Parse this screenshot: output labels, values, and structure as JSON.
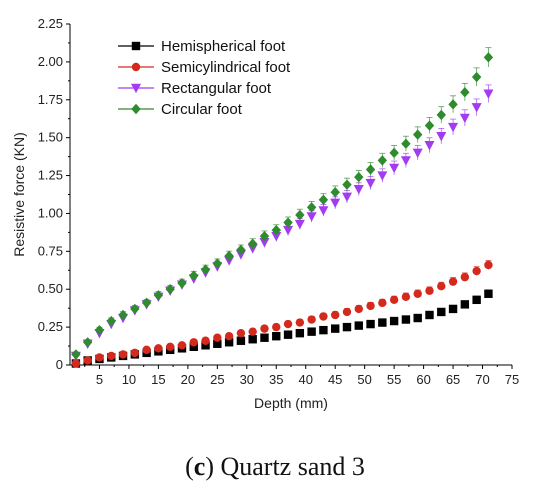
{
  "chart_data": {
    "type": "scatter",
    "xlabel": "Depth (mm)",
    "ylabel": "Resistive force (KN)",
    "xlim": [
      0,
      75
    ],
    "ylim": [
      0,
      2.25
    ],
    "xticks": [
      5,
      10,
      15,
      20,
      25,
      30,
      35,
      40,
      45,
      50,
      55,
      60,
      65,
      70,
      75
    ],
    "yticks": [
      0,
      0.25,
      0.5,
      0.75,
      1.0,
      1.25,
      1.5,
      1.75,
      2.0,
      2.25
    ],
    "ytick_labels": [
      "0",
      "0.25",
      "0.50",
      "0.75",
      "1.00",
      "1.25",
      "1.50",
      "1.75",
      "2.00",
      "2.25"
    ],
    "x0_label": "0",
    "grid": false,
    "legend_position": "top-left",
    "x": [
      1,
      3,
      5,
      7,
      9,
      11,
      13,
      15,
      17,
      19,
      21,
      23,
      25,
      27,
      29,
      31,
      33,
      35,
      37,
      39,
      41,
      43,
      45,
      47,
      49,
      51,
      53,
      55,
      57,
      59,
      61,
      63,
      65,
      67,
      69,
      71
    ],
    "series": [
      {
        "name": "Hemispherical foot",
        "marker": "square",
        "color": "#000000",
        "values": [
          0.01,
          0.03,
          0.04,
          0.05,
          0.06,
          0.07,
          0.08,
          0.09,
          0.1,
          0.11,
          0.12,
          0.13,
          0.14,
          0.15,
          0.16,
          0.17,
          0.18,
          0.19,
          0.2,
          0.21,
          0.22,
          0.23,
          0.24,
          0.25,
          0.26,
          0.27,
          0.28,
          0.29,
          0.3,
          0.31,
          0.33,
          0.35,
          0.37,
          0.4,
          0.43,
          0.47
        ]
      },
      {
        "name": "Semicylindrical foot",
        "marker": "circle",
        "color": "#d42a1e",
        "values": [
          0.01,
          0.03,
          0.05,
          0.06,
          0.07,
          0.08,
          0.1,
          0.11,
          0.12,
          0.13,
          0.15,
          0.16,
          0.18,
          0.19,
          0.21,
          0.22,
          0.24,
          0.25,
          0.27,
          0.28,
          0.3,
          0.32,
          0.33,
          0.35,
          0.37,
          0.39,
          0.41,
          0.43,
          0.45,
          0.47,
          0.49,
          0.52,
          0.55,
          0.58,
          0.62,
          0.66
        ]
      },
      {
        "name": "Rectangular foot",
        "marker": "triangle-down",
        "color": "#a33bf0",
        "values": [
          0.06,
          0.14,
          0.21,
          0.27,
          0.31,
          0.36,
          0.4,
          0.45,
          0.49,
          0.53,
          0.57,
          0.61,
          0.65,
          0.69,
          0.73,
          0.77,
          0.81,
          0.85,
          0.89,
          0.93,
          0.98,
          1.02,
          1.07,
          1.11,
          1.16,
          1.2,
          1.25,
          1.3,
          1.35,
          1.4,
          1.45,
          1.51,
          1.57,
          1.63,
          1.7,
          1.79
        ]
      },
      {
        "name": "Circular foot",
        "marker": "diamond",
        "color": "#2e8b2e",
        "values": [
          0.07,
          0.15,
          0.23,
          0.29,
          0.33,
          0.37,
          0.41,
          0.46,
          0.5,
          0.54,
          0.59,
          0.63,
          0.67,
          0.72,
          0.76,
          0.8,
          0.85,
          0.89,
          0.94,
          0.99,
          1.04,
          1.09,
          1.14,
          1.19,
          1.24,
          1.29,
          1.35,
          1.4,
          1.46,
          1.52,
          1.58,
          1.65,
          1.72,
          1.8,
          1.9,
          2.03
        ]
      }
    ]
  },
  "caption": {
    "label": "c",
    "open": "(",
    "close": ")",
    "text": " Quartz sand 3"
  }
}
